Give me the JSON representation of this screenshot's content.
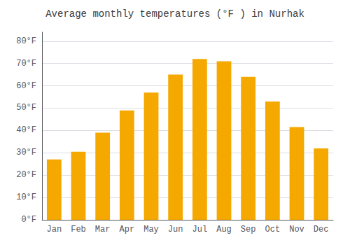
{
  "chart_data": {
    "type": "bar",
    "title": "Average monthly temperatures (°F ) in Nurhak",
    "categories": [
      "Jan",
      "Feb",
      "Mar",
      "Apr",
      "May",
      "Jun",
      "Jul",
      "Aug",
      "Sep",
      "Oct",
      "Nov",
      "Dec"
    ],
    "values": [
      27,
      30.5,
      39,
      49,
      57,
      65,
      72,
      71,
      64,
      53,
      41.5,
      32
    ],
    "color": "#F5A800",
    "ylim": [
      0,
      84
    ],
    "yticks": [
      {
        "value": 0,
        "label": "0°F"
      },
      {
        "value": 10,
        "label": "10°F"
      },
      {
        "value": 20,
        "label": "20°F"
      },
      {
        "value": 30,
        "label": "30°F"
      },
      {
        "value": 40,
        "label": "40°F"
      },
      {
        "value": 50,
        "label": "50°F"
      },
      {
        "value": 60,
        "label": "60°F"
      },
      {
        "value": 70,
        "label": "70°F"
      },
      {
        "value": 80,
        "label": "80°F"
      }
    ],
    "grid": true
  }
}
